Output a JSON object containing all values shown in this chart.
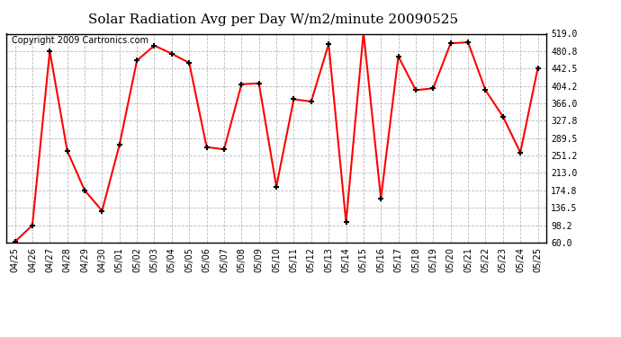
{
  "title": "Solar Radiation Avg per Day W/m2/minute 20090525",
  "copyright": "Copyright 2009 Cartronics.com",
  "labels": [
    "04/25",
    "04/26",
    "04/27",
    "04/28",
    "04/29",
    "04/30",
    "05/01",
    "05/02",
    "05/03",
    "05/04",
    "05/05",
    "05/06",
    "05/07",
    "05/08",
    "05/09",
    "05/10",
    "05/11",
    "05/12",
    "05/13",
    "05/14",
    "05/15",
    "05/16",
    "05/17",
    "05/18",
    "05/19",
    "05/20",
    "05/21",
    "05/22",
    "05/23",
    "05/24",
    "05/25"
  ],
  "values": [
    62,
    98,
    481,
    262,
    175,
    130,
    275,
    460,
    493,
    475,
    455,
    270,
    265,
    408,
    410,
    183,
    375,
    370,
    496,
    105,
    522,
    157,
    469,
    395,
    399,
    498,
    500,
    395,
    337,
    258,
    443
  ],
  "ylim": [
    60.0,
    519.0
  ],
  "yticks": [
    60.0,
    98.2,
    136.5,
    174.8,
    213.0,
    251.2,
    289.5,
    327.8,
    366.0,
    404.2,
    442.5,
    480.8,
    519.0
  ],
  "line_color": "#ff0000",
  "marker_color": "#000000",
  "bg_color": "#ffffff",
  "grid_color": "#bbbbbb",
  "title_fontsize": 11,
  "copyright_fontsize": 7,
  "tick_fontsize": 7,
  "ytick_fontsize": 7
}
